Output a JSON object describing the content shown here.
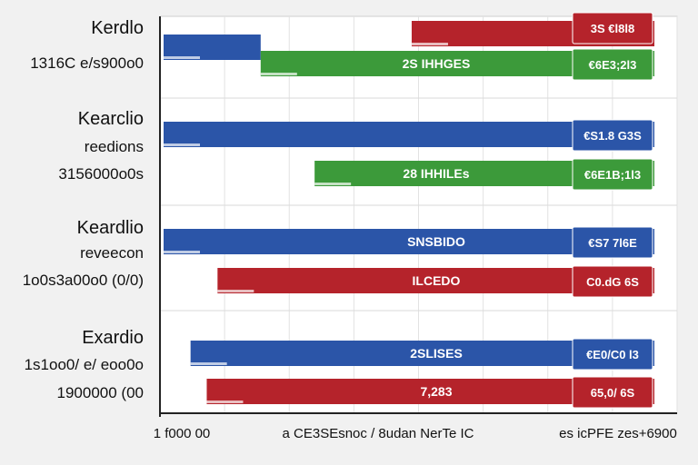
{
  "chart_data": {
    "type": "bar",
    "orientation": "horizontal",
    "title": "",
    "xlabel": "",
    "ylabel": "",
    "grid": true,
    "group_labels": [
      {
        "lines": [
          "Kerdlo",
          "1316C e/s900o0"
        ]
      },
      {
        "lines": [
          "Kearclio",
          "reedions",
          "3156000o0s"
        ]
      },
      {
        "lines": [
          "Keardlio",
          "reveecon",
          "1o0s3a00o0 (0/0)"
        ]
      },
      {
        "lines": [
          "Exardio",
          "1s1oo0/ e/ eoo0o",
          "1900000 (00"
        ]
      }
    ],
    "x_tick_labels": [
      "1 f000 00",
      "a CE3SEsnoc / 8udan NerTe IC",
      "es icPFE zes+6900"
    ],
    "bars": [
      {
        "group": 0,
        "series": "blue",
        "start": 0,
        "end": 90,
        "label": ""
      },
      {
        "group": 0,
        "series": "green",
        "start": 90,
        "end": 455,
        "label": "2S IHHGES"
      },
      {
        "group": 0,
        "series": "red",
        "start": 230,
        "end": 455,
        "label": ""
      },
      {
        "group": 1,
        "series": "blue",
        "start": 0,
        "end": 455,
        "label": ""
      },
      {
        "group": 1,
        "series": "green",
        "start": 140,
        "end": 455,
        "label": "28 IHHILEs"
      },
      {
        "group": 2,
        "series": "blue",
        "start": 0,
        "end": 455,
        "label": "SNSBIDO"
      },
      {
        "group": 2,
        "series": "red",
        "start": 50,
        "end": 455,
        "label": "ILCEDO"
      },
      {
        "group": 3,
        "series": "blue",
        "start": 25,
        "end": 455,
        "label": "2SLISES"
      },
      {
        "group": 3,
        "series": "red",
        "start": 40,
        "end": 455,
        "label": "7,283"
      }
    ],
    "callouts": [
      {
        "group": 0,
        "series": "red",
        "label": "3S €l8l8"
      },
      {
        "group": 0,
        "series": "green",
        "label": "€6E3;2l3"
      },
      {
        "group": 1,
        "series": "blue",
        "label": "€S1.8 G3S"
      },
      {
        "group": 1,
        "series": "green",
        "label": "€6E1B;1l3"
      },
      {
        "group": 2,
        "series": "blue",
        "label": "€S7 7l6E"
      },
      {
        "group": 2,
        "series": "red",
        "label": "C0.dG 6S"
      },
      {
        "group": 3,
        "series": "blue",
        "label": "€E0/C0 l3"
      },
      {
        "group": 3,
        "series": "red",
        "label": "65,0/ 6S"
      }
    ],
    "colors": {
      "blue": "#2b55a8",
      "green": "#3c9a3a",
      "red": "#b5232b"
    }
  }
}
